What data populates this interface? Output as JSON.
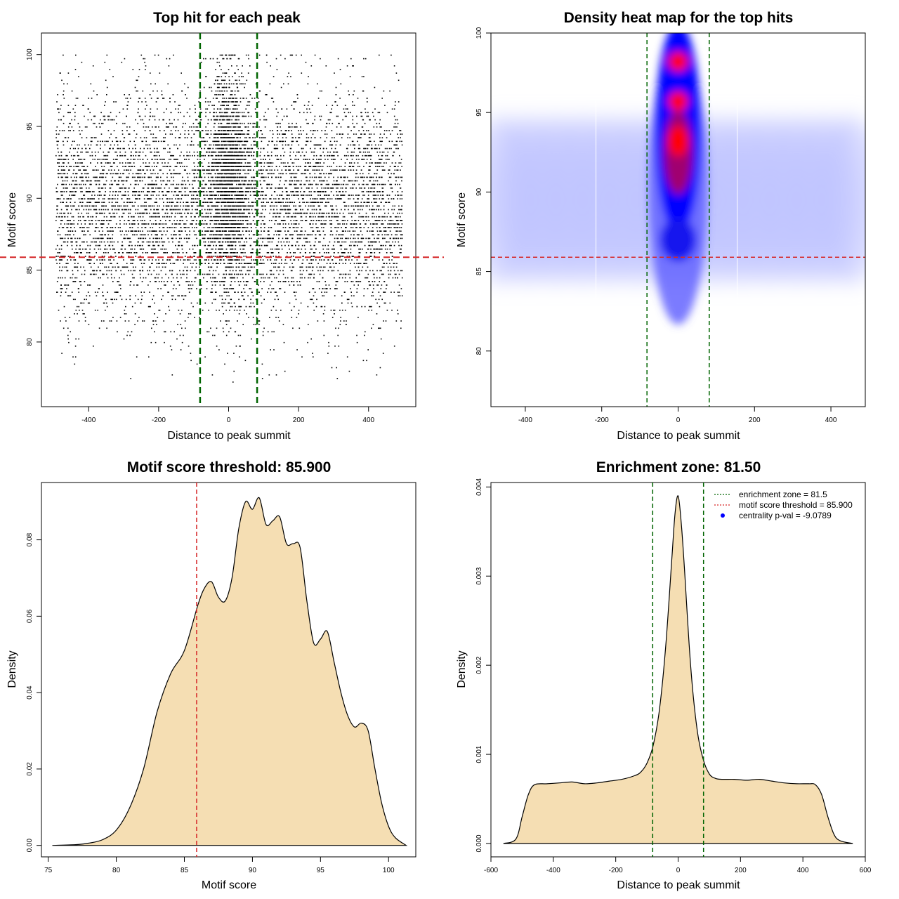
{
  "chart_data": [
    {
      "type": "scatter",
      "title": "Top hit for each peak",
      "xlabel": "Distance to peak summit",
      "ylabel": "Motif score",
      "xlim": [
        -535,
        535
      ],
      "ylim": [
        75.5,
        101.5
      ],
      "xticks": [
        -400,
        -200,
        0,
        200,
        400
      ],
      "yticks": [
        80,
        85,
        90,
        95,
        100
      ],
      "vlines": [
        -81.5,
        81.5
      ],
      "hline": 85.9,
      "colors": {
        "points": "#000000",
        "vline": "#006400",
        "hline": "#d62728"
      },
      "point_range_x": [
        -495,
        495
      ],
      "point_range_y": [
        77,
        100
      ],
      "central_enrichment_x": [
        -81.5,
        81.5
      ]
    },
    {
      "type": "heatmap",
      "title": "Density heat map for the top hits",
      "xlabel": "Distance to peak summit",
      "ylabel": "Motif score",
      "xlim": [
        -490,
        490
      ],
      "ylim": [
        76.5,
        100
      ],
      "xticks": [
        -400,
        -200,
        0,
        200,
        400
      ],
      "yticks": [
        80,
        85,
        90,
        95,
        100
      ],
      "vlines": [
        -81.5,
        81.5
      ],
      "hline": 85.9,
      "colors": {
        "low": "#ffffff",
        "mid": "#0000ff",
        "high": "#ff0000",
        "vline": "#006400",
        "hline": "#d62728"
      },
      "hotspots": [
        {
          "x": 0,
          "y": 93.2
        },
        {
          "x": 0,
          "y": 95.7
        },
        {
          "x": 0,
          "y": 98.2
        }
      ]
    },
    {
      "type": "area",
      "title": "Motif score threshold: 85.900",
      "xlabel": "Motif score",
      "ylabel": "Density",
      "xlim": [
        74.5,
        102
      ],
      "ylim": [
        -0.003,
        0.095
      ],
      "xticks": [
        75,
        80,
        85,
        90,
        95,
        100
      ],
      "yticks": [
        0.0,
        0.02,
        0.04,
        0.06,
        0.08
      ],
      "ytick_labels": [
        "0.00",
        "0.02",
        "0.04",
        "0.06",
        "0.08"
      ],
      "vline": 85.9,
      "colors": {
        "fill": "#f5deb3",
        "line": "#000000",
        "vline": "#d62728"
      },
      "x": [
        75.3,
        77,
        78,
        79,
        80,
        81,
        82,
        83,
        84,
        85,
        86,
        86.5,
        87,
        87.5,
        88,
        88.5,
        89,
        89.5,
        90,
        90.5,
        91,
        91.5,
        92,
        92.5,
        93,
        93.5,
        94,
        94.5,
        95,
        95.5,
        96,
        96.5,
        97,
        97.5,
        98,
        98.5,
        99,
        99.5,
        100,
        100.5,
        101.3
      ],
      "y": [
        0.0,
        0.0002,
        0.0006,
        0.0015,
        0.004,
        0.01,
        0.02,
        0.035,
        0.045,
        0.051,
        0.063,
        0.0675,
        0.069,
        0.065,
        0.064,
        0.07,
        0.083,
        0.09,
        0.088,
        0.091,
        0.084,
        0.085,
        0.086,
        0.079,
        0.079,
        0.078,
        0.064,
        0.053,
        0.054,
        0.056,
        0.048,
        0.04,
        0.034,
        0.031,
        0.032,
        0.03,
        0.02,
        0.011,
        0.005,
        0.002,
        0.0
      ]
    },
    {
      "type": "area",
      "title": "Enrichment zone: 81.50",
      "xlabel": "Distance to peak summit",
      "ylabel": "Density",
      "xlim": [
        -600,
        600
      ],
      "ylim": [
        -0.00015,
        0.00405
      ],
      "xticks": [
        -600,
        -400,
        -200,
        0,
        200,
        400,
        600
      ],
      "yticks": [
        0.0,
        0.001,
        0.002,
        0.003,
        0.004
      ],
      "ytick_labels": [
        "0.000",
        "0.001",
        "0.002",
        "0.003",
        "0.004"
      ],
      "vlines": [
        -81.5,
        81.5
      ],
      "colors": {
        "fill": "#f5deb3",
        "line": "#000000",
        "vline": "#006400",
        "legend_hline": "#d62728",
        "legend_dot": "#0000ff"
      },
      "legend": {
        "placement": "top-right",
        "entries": [
          "enrichment zone = 81.5",
          "motif score threshold = 85.900",
          "centrality p-val = -9.0789"
        ]
      },
      "x": [
        -560,
        -520,
        -500,
        -480,
        -460,
        -420,
        -380,
        -340,
        -300,
        -260,
        -220,
        -180,
        -140,
        -120,
        -100,
        -80,
        -60,
        -40,
        -20,
        -10,
        0,
        10,
        20,
        40,
        60,
        80,
        100,
        120,
        140,
        180,
        220,
        260,
        300,
        340,
        380,
        420,
        440,
        460,
        480,
        500,
        520,
        560
      ],
      "y": [
        0.0,
        5e-05,
        0.0003,
        0.00055,
        0.00066,
        0.00067,
        0.00068,
        0.00069,
        0.00067,
        0.00068,
        0.0007,
        0.00072,
        0.00076,
        0.0008,
        0.0009,
        0.0011,
        0.0015,
        0.0022,
        0.0032,
        0.0037,
        0.0039,
        0.0036,
        0.0031,
        0.002,
        0.0013,
        0.00095,
        0.00078,
        0.00073,
        0.00072,
        0.00072,
        0.00071,
        0.00072,
        0.0007,
        0.00068,
        0.00067,
        0.00067,
        0.00066,
        0.00055,
        0.0003,
        0.0001,
        3e-05,
        0.0
      ]
    }
  ]
}
